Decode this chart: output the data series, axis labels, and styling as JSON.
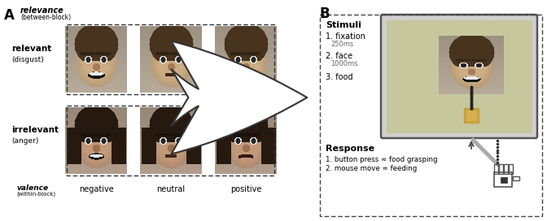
{
  "fig_width": 6.72,
  "fig_height": 2.72,
  "dpi": 100,
  "bg_color": "#ffffff",
  "label_A": "A",
  "label_B": "B",
  "relevance_label": "relevance",
  "between_block": "(between-block)",
  "relevant_label": "relevant",
  "disgust_label": "(disgust)",
  "irrelevant_label": "irrelevant",
  "anger_label": "(anger)",
  "valence_label": "valence",
  "within_block": "(within-block)",
  "negative_label": "negative",
  "neutral_label": "neutral",
  "positive_label": "positive",
  "stimuli_title": "Stimuli",
  "fixation_label": "1. fixation",
  "fixation_ms": "250ms",
  "face_label": "2. face",
  "face_ms": "1000ms",
  "food_label": "3. food",
  "response_title": "Response",
  "response_1": "1. button press ≈ food grasping",
  "response_2": "2. mouse move ≈ feeding",
  "screen_bg_rgb": [
    0.78,
    0.78,
    0.62
  ],
  "screen_border_color": "#555555",
  "male_bg_rgb": [
    0.72,
    0.67,
    0.6
  ],
  "female_bg_rgb": [
    0.7,
    0.62,
    0.55
  ],
  "male_skin_rgb": [
    0.8,
    0.68,
    0.52
  ],
  "female_skin_rgb": [
    0.76,
    0.6,
    0.48
  ],
  "male_hair_rgb": [
    0.28,
    0.2,
    0.12
  ],
  "female_hair_rgb": [
    0.15,
    0.1,
    0.06
  ]
}
